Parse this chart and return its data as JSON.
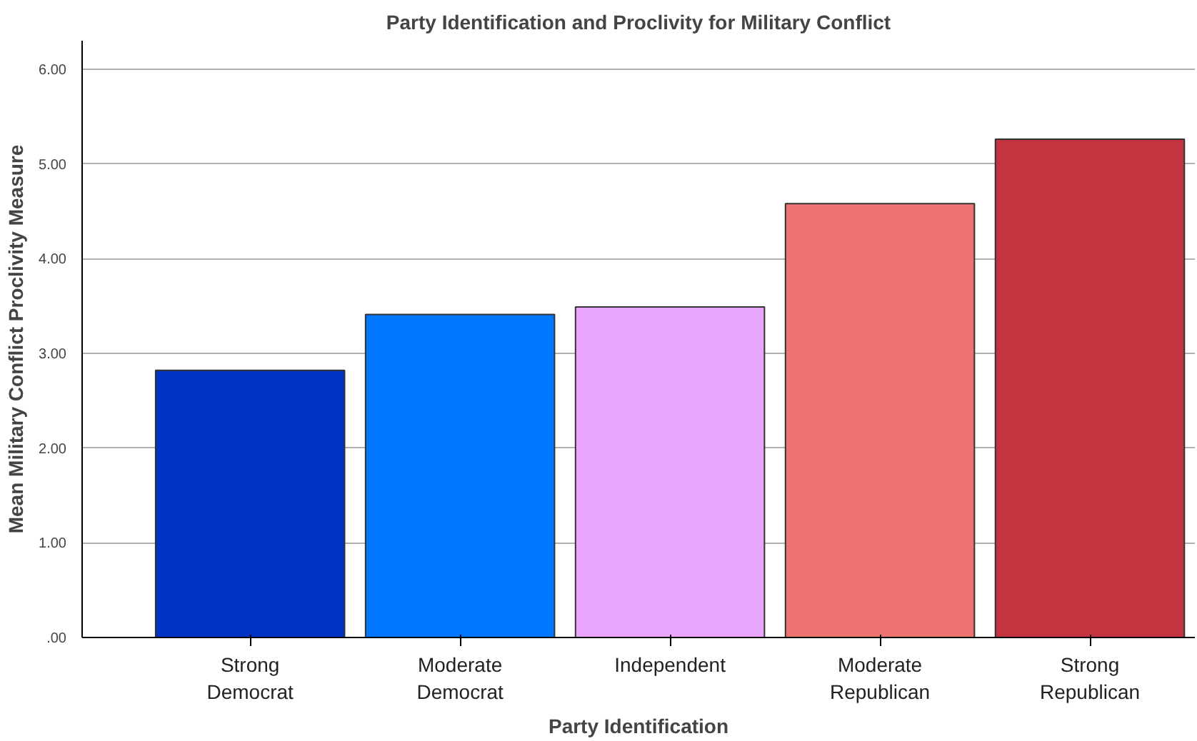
{
  "chart_data": {
    "type": "bar",
    "title": "Party Identification and Proclivity for Military Conflict",
    "xlabel": "Party Identification",
    "ylabel": "Mean Military Conflict Proclivity Measure",
    "categories": [
      "Strong Democrat",
      "Moderate Democrat",
      "Independent",
      "Moderate Republican",
      "Strong Republican"
    ],
    "values": [
      2.82,
      3.41,
      3.49,
      4.58,
      5.26
    ],
    "colors": [
      "#0033c4",
      "#0077ff",
      "#eaa6fc",
      "#ec7370",
      "#c33340"
    ],
    "ylim": [
      0,
      6.3
    ],
    "yticks": [
      {
        "value": 0,
        "label": ".00"
      },
      {
        "value": 1,
        "label": "1.00"
      },
      {
        "value": 2,
        "label": "2.00"
      },
      {
        "value": 3,
        "label": "3.00"
      },
      {
        "value": 4,
        "label": "4.00"
      },
      {
        "value": 5,
        "label": "5.00"
      },
      {
        "value": 6,
        "label": "6.00"
      }
    ],
    "grid": "y"
  }
}
